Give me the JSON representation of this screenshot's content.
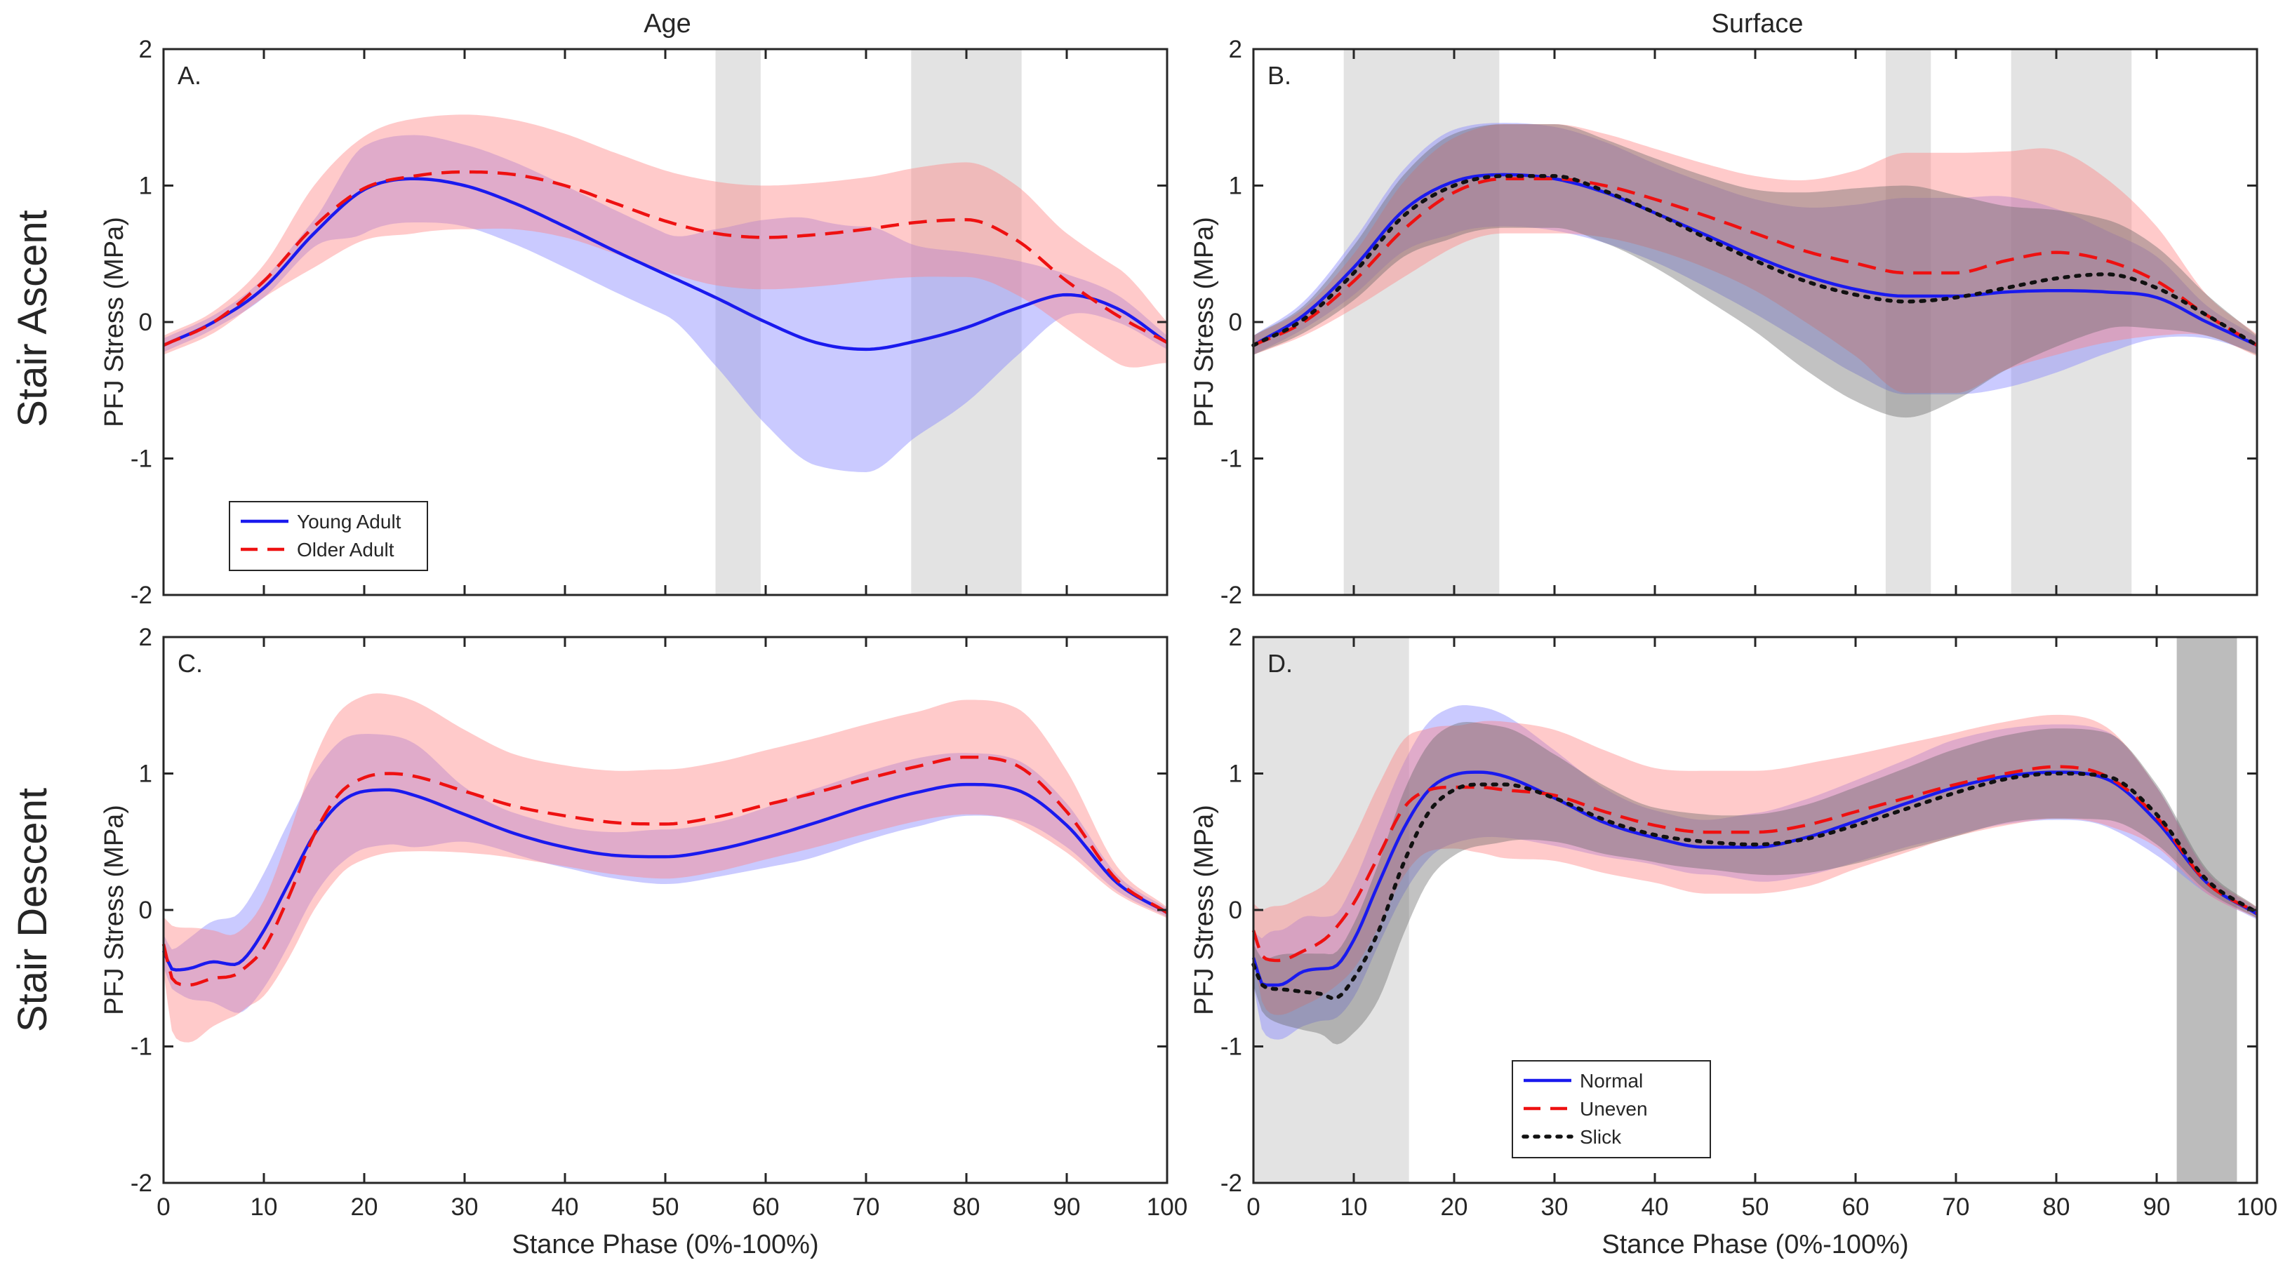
{
  "figure": {
    "column_titles": [
      "Age",
      "Surface"
    ],
    "row_titles": [
      "Stair Ascent",
      "Stair Descent"
    ],
    "ylabel": "PFJ Stress (MPa)",
    "xlabel": "Stance Phase (0%-100%)"
  },
  "colors": {
    "blue": "#1a1aee",
    "red": "#ee1111",
    "black": "#111111",
    "blue_band": "#8080ff",
    "red_band": "#ff8080",
    "black_band": "#666666",
    "sig_light": "#d9d9d9",
    "sig_dark": "#a6a6a6"
  },
  "chart_data": [
    {
      "panel": "A.",
      "type": "line",
      "xlim": [
        0,
        100
      ],
      "ylim": [
        -2,
        2
      ],
      "xticks": [
        0,
        10,
        20,
        30,
        40,
        50,
        60,
        70,
        80,
        90,
        100
      ],
      "yticks": [
        -2,
        -1,
        0,
        1,
        2
      ],
      "shaded_regions": [
        {
          "start": 55,
          "end": 59.5,
          "shade": "light"
        },
        {
          "start": 74.5,
          "end": 85.5,
          "shade": "light"
        }
      ],
      "legend_position": "bottom-left",
      "series": [
        {
          "name": "Young Adult",
          "style": "solid",
          "color": "blue",
          "x": [
            0,
            5,
            10,
            15,
            20,
            25,
            30,
            35,
            40,
            45,
            50,
            55,
            60,
            65,
            70,
            75,
            80,
            85,
            90,
            95,
            100
          ],
          "mean": [
            -0.17,
            0.0,
            0.25,
            0.65,
            0.97,
            1.05,
            1.0,
            0.87,
            0.7,
            0.52,
            0.35,
            0.18,
            0.0,
            -0.15,
            -0.2,
            -0.14,
            -0.04,
            0.1,
            0.2,
            0.1,
            -0.15
          ],
          "sd": [
            0.05,
            0.05,
            0.07,
            0.1,
            0.32,
            0.32,
            0.3,
            0.3,
            0.3,
            0.3,
            0.3,
            0.5,
            0.75,
            0.9,
            0.9,
            0.7,
            0.55,
            0.35,
            0.15,
            0.1,
            0.05
          ]
        },
        {
          "name": "Older Adult",
          "style": "dashed",
          "color": "red",
          "x": [
            0,
            5,
            10,
            15,
            20,
            25,
            30,
            35,
            40,
            45,
            50,
            55,
            60,
            65,
            70,
            75,
            80,
            85,
            90,
            95,
            100
          ],
          "mean": [
            -0.17,
            0.0,
            0.3,
            0.7,
            0.98,
            1.07,
            1.1,
            1.08,
            1.0,
            0.87,
            0.74,
            0.65,
            0.62,
            0.64,
            0.68,
            0.73,
            0.75,
            0.6,
            0.3,
            0.05,
            -0.15
          ],
          "sd": [
            0.07,
            0.08,
            0.12,
            0.3,
            0.38,
            0.42,
            0.42,
            0.4,
            0.38,
            0.37,
            0.37,
            0.38,
            0.38,
            0.38,
            0.38,
            0.4,
            0.42,
            0.4,
            0.35,
            0.35,
            0.15
          ]
        }
      ]
    },
    {
      "panel": "B.",
      "type": "line",
      "xlim": [
        0,
        100
      ],
      "ylim": [
        -2,
        2
      ],
      "xticks": [
        0,
        10,
        20,
        30,
        40,
        50,
        60,
        70,
        80,
        90,
        100
      ],
      "yticks": [
        -2,
        -1,
        0,
        1,
        2
      ],
      "shaded_regions": [
        {
          "start": 9,
          "end": 24.5,
          "shade": "light"
        },
        {
          "start": 63,
          "end": 67.5,
          "shade": "light"
        },
        {
          "start": 75.5,
          "end": 87.5,
          "shade": "light"
        }
      ],
      "series": [
        {
          "name": "Normal",
          "style": "solid",
          "color": "blue",
          "x": [
            0,
            5,
            10,
            15,
            20,
            25,
            30,
            35,
            40,
            45,
            50,
            55,
            60,
            65,
            70,
            75,
            80,
            85,
            90,
            95,
            100
          ],
          "mean": [
            -0.17,
            0.05,
            0.4,
            0.82,
            1.03,
            1.08,
            1.05,
            0.95,
            0.8,
            0.64,
            0.48,
            0.34,
            0.24,
            0.19,
            0.19,
            0.22,
            0.23,
            0.22,
            0.18,
            0.0,
            -0.17
          ],
          "sd": [
            0.07,
            0.1,
            0.2,
            0.3,
            0.38,
            0.38,
            0.38,
            0.37,
            0.36,
            0.38,
            0.42,
            0.5,
            0.62,
            0.72,
            0.72,
            0.7,
            0.6,
            0.45,
            0.3,
            0.12,
            0.06
          ]
        },
        {
          "name": "Uneven",
          "style": "dashed",
          "color": "red",
          "x": [
            0,
            5,
            10,
            15,
            20,
            25,
            30,
            35,
            40,
            45,
            50,
            55,
            60,
            65,
            70,
            75,
            80,
            85,
            90,
            95,
            100
          ],
          "mean": [
            -0.17,
            0.0,
            0.3,
            0.68,
            0.95,
            1.05,
            1.05,
            1.0,
            0.9,
            0.78,
            0.65,
            0.52,
            0.43,
            0.36,
            0.36,
            0.45,
            0.51,
            0.45,
            0.3,
            0.05,
            -0.17
          ],
          "sd": [
            0.07,
            0.1,
            0.2,
            0.35,
            0.4,
            0.4,
            0.4,
            0.38,
            0.37,
            0.38,
            0.42,
            0.52,
            0.68,
            0.88,
            0.88,
            0.8,
            0.75,
            0.6,
            0.4,
            0.15,
            0.08
          ]
        },
        {
          "name": "Slick",
          "style": "dotted",
          "color": "black",
          "x": [
            0,
            5,
            10,
            15,
            20,
            25,
            30,
            35,
            40,
            45,
            50,
            55,
            60,
            65,
            70,
            75,
            80,
            85,
            90,
            95,
            100
          ],
          "mean": [
            -0.17,
            0.02,
            0.36,
            0.78,
            1.0,
            1.07,
            1.07,
            0.96,
            0.8,
            0.62,
            0.45,
            0.3,
            0.2,
            0.15,
            0.18,
            0.25,
            0.32,
            0.35,
            0.25,
            0.05,
            -0.17
          ],
          "sd": [
            0.07,
            0.1,
            0.2,
            0.3,
            0.38,
            0.38,
            0.38,
            0.38,
            0.4,
            0.45,
            0.52,
            0.65,
            0.78,
            0.85,
            0.75,
            0.6,
            0.5,
            0.4,
            0.3,
            0.15,
            0.07
          ]
        }
      ]
    },
    {
      "panel": "C.",
      "type": "line",
      "xlim": [
        0,
        100
      ],
      "ylim": [
        -2,
        2
      ],
      "xticks": [
        0,
        10,
        20,
        30,
        40,
        50,
        60,
        70,
        80,
        90,
        100
      ],
      "yticks": [
        -2,
        -1,
        0,
        1,
        2
      ],
      "shaded_regions": [],
      "series": [
        {
          "name": "Young Adult",
          "style": "solid",
          "color": "blue",
          "x": [
            0,
            1,
            2.5,
            5,
            7,
            8,
            10,
            12.5,
            15,
            17.5,
            20,
            22.5,
            25,
            30,
            35,
            40,
            45,
            50,
            55,
            60,
            65,
            70,
            75,
            80,
            85,
            90,
            95,
            100
          ],
          "mean": [
            -0.3,
            -0.44,
            -0.43,
            -0.38,
            -0.4,
            -0.36,
            -0.15,
            0.2,
            0.55,
            0.78,
            0.87,
            0.88,
            0.84,
            0.7,
            0.56,
            0.46,
            0.4,
            0.39,
            0.44,
            0.53,
            0.64,
            0.76,
            0.86,
            0.92,
            0.88,
            0.62,
            0.2,
            -0.02
          ],
          "sd": [
            0.12,
            0.15,
            0.22,
            0.3,
            0.35,
            0.38,
            0.42,
            0.45,
            0.45,
            0.45,
            0.42,
            0.4,
            0.38,
            0.2,
            0.15,
            0.15,
            0.17,
            0.2,
            0.2,
            0.22,
            0.25,
            0.25,
            0.25,
            0.23,
            0.22,
            0.16,
            0.06,
            0.03
          ]
        },
        {
          "name": "Older Adult",
          "style": "dashed",
          "color": "red",
          "x": [
            0,
            1,
            2.5,
            5,
            7,
            8,
            10,
            12.5,
            15,
            17.5,
            20,
            22.5,
            25,
            30,
            35,
            40,
            45,
            50,
            55,
            60,
            65,
            70,
            75,
            80,
            85,
            90,
            95,
            100
          ],
          "mean": [
            -0.25,
            -0.52,
            -0.55,
            -0.5,
            -0.48,
            -0.43,
            -0.28,
            0.1,
            0.55,
            0.85,
            0.97,
            1.0,
            0.98,
            0.87,
            0.76,
            0.69,
            0.64,
            0.63,
            0.68,
            0.77,
            0.86,
            0.96,
            1.05,
            1.12,
            1.06,
            0.72,
            0.22,
            -0.02
          ],
          "sd": [
            0.2,
            0.4,
            0.42,
            0.35,
            0.3,
            0.3,
            0.35,
            0.45,
            0.55,
            0.6,
            0.6,
            0.58,
            0.55,
            0.45,
            0.38,
            0.37,
            0.38,
            0.4,
            0.4,
            0.4,
            0.4,
            0.4,
            0.4,
            0.42,
            0.42,
            0.3,
            0.1,
            0.04
          ]
        }
      ]
    },
    {
      "panel": "D.",
      "type": "line",
      "xlim": [
        0,
        100
      ],
      "ylim": [
        -2,
        2
      ],
      "xticks": [
        0,
        10,
        20,
        30,
        40,
        50,
        60,
        70,
        80,
        90,
        100
      ],
      "yticks": [
        -2,
        -1,
        0,
        1,
        2
      ],
      "shaded_regions": [
        {
          "start": 0,
          "end": 15.5,
          "shade": "light"
        },
        {
          "start": 92,
          "end": 98,
          "shade": "dark"
        }
      ],
      "legend_position": "bottom-center",
      "series": [
        {
          "name": "Normal",
          "style": "solid",
          "color": "blue",
          "x": [
            0,
            1,
            2.5,
            5,
            7,
            8,
            10,
            12.5,
            15,
            17.5,
            20,
            22.5,
            25,
            30,
            35,
            40,
            45,
            50,
            55,
            60,
            65,
            70,
            75,
            80,
            85,
            90,
            95,
            100
          ],
          "mean": [
            -0.35,
            -0.55,
            -0.55,
            -0.45,
            -0.43,
            -0.42,
            -0.22,
            0.2,
            0.6,
            0.88,
            0.99,
            1.01,
            0.98,
            0.82,
            0.64,
            0.53,
            0.46,
            0.46,
            0.53,
            0.65,
            0.78,
            0.9,
            0.98,
            1.01,
            0.96,
            0.65,
            0.2,
            -0.03
          ],
          "sd": [
            0.2,
            0.35,
            0.4,
            0.4,
            0.38,
            0.38,
            0.42,
            0.45,
            0.48,
            0.5,
            0.5,
            0.48,
            0.45,
            0.35,
            0.25,
            0.2,
            0.2,
            0.25,
            0.28,
            0.3,
            0.32,
            0.35,
            0.35,
            0.35,
            0.35,
            0.25,
            0.08,
            0.04
          ]
        },
        {
          "name": "Uneven",
          "style": "dashed",
          "color": "red",
          "x": [
            0,
            1,
            2.5,
            5,
            7,
            8,
            10,
            12.5,
            15,
            17.5,
            20,
            22.5,
            25,
            30,
            35,
            40,
            45,
            50,
            55,
            60,
            65,
            70,
            75,
            80,
            85,
            90,
            95,
            100
          ],
          "mean": [
            -0.15,
            -0.35,
            -0.37,
            -0.3,
            -0.22,
            -0.15,
            0.05,
            0.4,
            0.75,
            0.88,
            0.9,
            0.9,
            0.88,
            0.84,
            0.72,
            0.62,
            0.57,
            0.57,
            0.62,
            0.72,
            0.82,
            0.92,
            1.0,
            1.05,
            0.98,
            0.68,
            0.2,
            -0.02
          ],
          "sd": [
            0.2,
            0.35,
            0.4,
            0.4,
            0.4,
            0.42,
            0.48,
            0.52,
            0.5,
            0.45,
            0.45,
            0.48,
            0.5,
            0.48,
            0.45,
            0.42,
            0.45,
            0.45,
            0.45,
            0.42,
            0.4,
            0.38,
            0.38,
            0.38,
            0.36,
            0.22,
            0.08,
            0.04
          ]
        },
        {
          "name": "Slick",
          "style": "dotted",
          "color": "black",
          "x": [
            0,
            1,
            2.5,
            5,
            7,
            8,
            10,
            12.5,
            15,
            17.5,
            20,
            22.5,
            25,
            30,
            35,
            40,
            45,
            50,
            55,
            60,
            65,
            70,
            75,
            80,
            85,
            90,
            95,
            100
          ],
          "mean": [
            -0.4,
            -0.56,
            -0.58,
            -0.6,
            -0.62,
            -0.65,
            -0.5,
            -0.15,
            0.35,
            0.72,
            0.88,
            0.92,
            0.92,
            0.82,
            0.66,
            0.55,
            0.5,
            0.48,
            0.52,
            0.62,
            0.74,
            0.86,
            0.96,
            1.0,
            0.98,
            0.7,
            0.22,
            -0.02
          ],
          "sd": [
            0.15,
            0.2,
            0.25,
            0.28,
            0.3,
            0.33,
            0.4,
            0.5,
            0.52,
            0.5,
            0.48,
            0.45,
            0.42,
            0.32,
            0.25,
            0.2,
            0.2,
            0.22,
            0.25,
            0.28,
            0.3,
            0.32,
            0.32,
            0.33,
            0.32,
            0.22,
            0.08,
            0.04
          ]
        }
      ]
    }
  ]
}
